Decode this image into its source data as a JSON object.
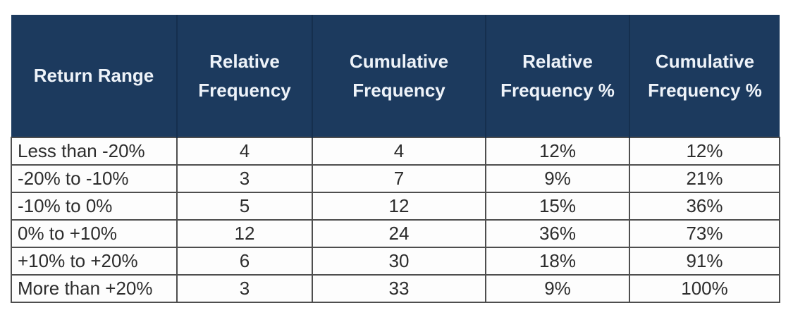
{
  "chart_data": {
    "type": "table",
    "columns": [
      "Return Range",
      "Relative Frequency",
      "Cumulative Frequency",
      "Relative Frequency %",
      "Cumulative Frequency %"
    ],
    "rows": [
      [
        "Less than -20%",
        "4",
        "4",
        "12%",
        "12%"
      ],
      [
        "-20% to -10%",
        "3",
        "7",
        "9%",
        "21%"
      ],
      [
        "-10% to 0%",
        "5",
        "12",
        "15%",
        "36%"
      ],
      [
        "0% to +10%",
        "12",
        "24",
        "36%",
        "73%"
      ],
      [
        "+10% to +20%",
        "6",
        "30",
        "18%",
        "91%"
      ],
      [
        "More than +20%",
        "3",
        "33",
        "9%",
        "100%"
      ]
    ],
    "layout": {
      "header_position": "top",
      "first_column_align": "left",
      "data_align": "center",
      "grid": true
    }
  },
  "colors": {
    "header_bg": "#1c3a5e",
    "header_text": "#eef3f9",
    "body_text": "#2d2d2d",
    "grid_border": "#4e4e4e",
    "cell_bg": "#fdfdfd"
  }
}
